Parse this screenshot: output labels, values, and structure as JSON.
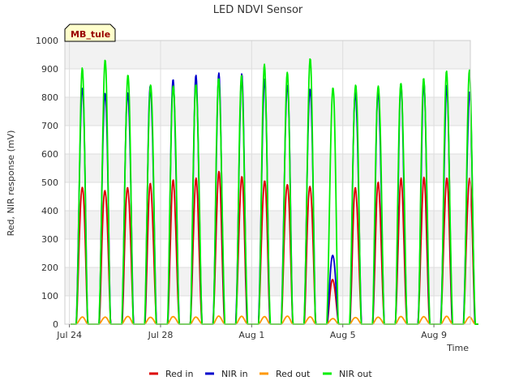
{
  "chart_data": {
    "type": "line",
    "title": "LED NDVI Sensor",
    "station_label": "MB_tule",
    "xlabel": "Time",
    "ylabel": "Red, NIR response (mV)",
    "ylim": [
      0,
      1000
    ],
    "yticks": [
      0,
      100,
      200,
      300,
      400,
      500,
      600,
      700,
      800,
      900,
      1000
    ],
    "xlim_days": [
      -0.2,
      17.6
    ],
    "xticks": [
      {
        "label": "Jul 24",
        "day": 0
      },
      {
        "label": "Jul 28",
        "day": 4
      },
      {
        "label": "Aug 1",
        "day": 8
      },
      {
        "label": "Aug 5",
        "day": 12
      },
      {
        "label": "Aug 9",
        "day": 16
      }
    ],
    "grid": true,
    "legend_position": "bottom",
    "days": [
      "Jul 24",
      "Jul 25",
      "Jul 26",
      "Jul 27",
      "Jul 28",
      "Jul 29",
      "Jul 30",
      "Jul 31",
      "Aug 1",
      "Aug 2",
      "Aug 3",
      "Aug 4",
      "Aug 5",
      "Aug 6",
      "Aug 7",
      "Aug 8",
      "Aug 9",
      "Aug 10"
    ],
    "series": [
      {
        "name": "Red in",
        "color": "#dd0000",
        "daily_peak": [
          495,
          485,
          490,
          495,
          498,
          500,
          525,
          515,
          510,
          505,
          500,
          160,
          480,
          490,
          500,
          505,
          510,
          520
        ]
      },
      {
        "name": "NIR in",
        "color": "#0000cc",
        "daily_peak": [
          840,
          835,
          840,
          855,
          860,
          860,
          860,
          860,
          855,
          850,
          850,
          250,
          830,
          820,
          830,
          830,
          820,
          810
        ]
      },
      {
        "name": "Red out",
        "color": "#ff9900",
        "daily_peak": [
          25,
          25,
          28,
          25,
          27,
          25,
          28,
          27,
          26,
          28,
          26,
          20,
          24,
          25,
          27,
          26,
          27,
          25
        ]
      },
      {
        "name": "NIR out",
        "color": "#00ee00",
        "daily_peak": [
          880,
          920,
          885,
          865,
          865,
          860,
          865,
          860,
          890,
          865,
          925,
          840,
          865,
          865,
          865,
          865,
          875,
          870
        ]
      }
    ]
  }
}
